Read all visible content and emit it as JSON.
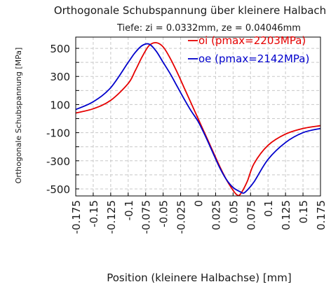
{
  "chart_data": {
    "type": "line",
    "title": "Orthogonale Schubspannung über kleinere Halbach",
    "subtitle": "Tiefe: zi = 0.0332mm, ze = 0.04046mm",
    "xlabel": "Position (kleinere Halbachse) [mm]",
    "ylabel": "Orthogonale Schubspannung [MPa]",
    "xlim": [
      -0.175,
      0.175
    ],
    "ylim": [
      -550,
      580
    ],
    "grid": true,
    "legend_position": "top-right",
    "x_ticks": [
      -0.175,
      -0.15,
      -0.125,
      -0.1,
      -0.075,
      -0.05,
      -0.025,
      0,
      0.025,
      0.05,
      0.075,
      0.1,
      0.125,
      0.15,
      0.175
    ],
    "x_tick_labels": [
      "-0.175",
      "-0.15",
      "-0.125",
      "-0.1",
      "-0.075",
      "-0.05",
      "-0.025",
      "0",
      "0.025",
      "0.05",
      "0.075",
      "0.1",
      "0.125",
      "0.15",
      "0.175"
    ],
    "y_ticks": [
      500,
      300,
      100,
      -100,
      -300,
      -500
    ],
    "y_tick_labels": [
      "500",
      "300",
      "100",
      "-100",
      "-300",
      "-500"
    ],
    "y_grid": [
      500,
      400,
      300,
      200,
      100,
      0,
      -100,
      -200,
      -300,
      -400,
      -500
    ],
    "series": [
      {
        "name": "oi (pmax=2203MPa)",
        "color": "#e60000",
        "x": [
          -0.175,
          -0.15,
          -0.125,
          -0.1,
          -0.09,
          -0.08,
          -0.07,
          -0.06,
          -0.05,
          -0.04,
          -0.03,
          -0.02,
          -0.01,
          0,
          0.01,
          0.02,
          0.03,
          0.04,
          0.05,
          0.055,
          0.06,
          0.07,
          0.08,
          0.1,
          0.125,
          0.15,
          0.175
        ],
        "y": [
          40,
          70,
          130,
          250,
          340,
          440,
          520,
          540,
          510,
          430,
          330,
          220,
          110,
          0,
          -110,
          -220,
          -330,
          -430,
          -510,
          -540,
          -540,
          -450,
          -320,
          -190,
          -110,
          -70,
          -50
        ]
      },
      {
        "name": "oe (pmax=2142MPa)",
        "color": "#0000cc",
        "x": [
          -0.175,
          -0.15,
          -0.125,
          -0.1,
          -0.09,
          -0.08,
          -0.07,
          -0.06,
          -0.05,
          -0.04,
          -0.03,
          -0.02,
          -0.01,
          0,
          0.01,
          0.02,
          0.03,
          0.04,
          0.05,
          0.06,
          0.065,
          0.07,
          0.08,
          0.1,
          0.125,
          0.15,
          0.175
        ],
        "y": [
          65,
          120,
          220,
          400,
          470,
          520,
          530,
          480,
          400,
          320,
          230,
          140,
          55,
          -20,
          -120,
          -230,
          -340,
          -430,
          -490,
          -520,
          -530,
          -510,
          -450,
          -290,
          -170,
          -100,
          -70
        ]
      }
    ]
  }
}
